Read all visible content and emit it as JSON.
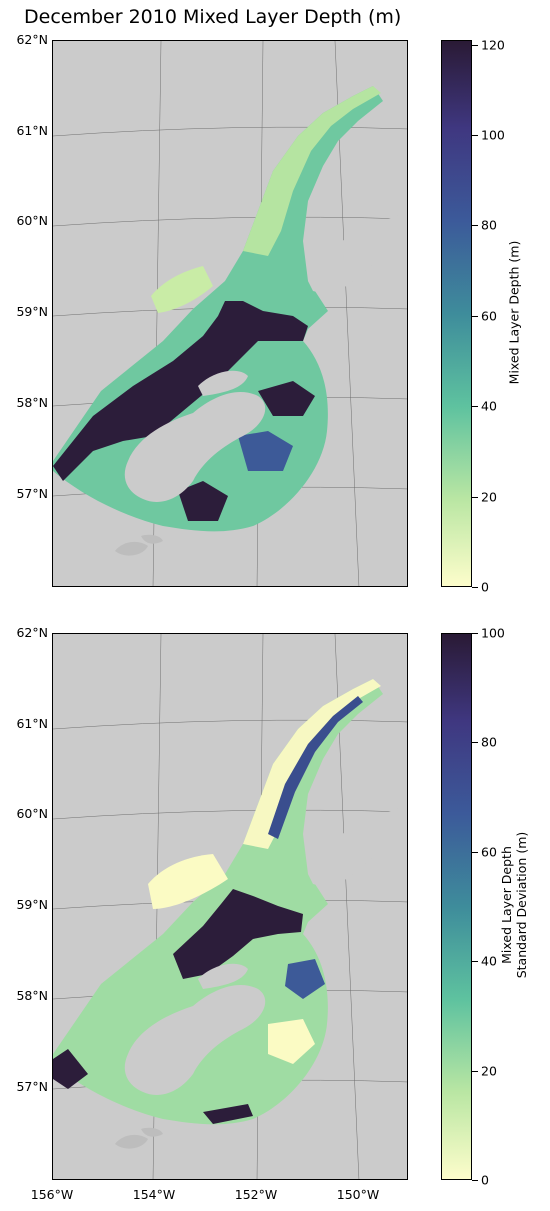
{
  "title": "December 2010 Mixed Layer Depth (m)",
  "lat_labels": [
    "62°N",
    "61°N",
    "60°N",
    "59°N",
    "58°N",
    "57°N"
  ],
  "lon_labels": [
    "156°W",
    "154°W",
    "152°W",
    "150°W"
  ],
  "colors": {
    "land": "#cbcbcb",
    "colormap": [
      "#fdfdcb",
      "#b9e6a3",
      "#5ec29f",
      "#3e8c9b",
      "#3c5a9a",
      "#3f3780",
      "#2a1a35"
    ]
  },
  "panels": [
    {
      "colorbar_label_line1": "Mixed Layer Depth (m)",
      "colorbar_label_line2": "",
      "colorbar_ticks": [
        "0",
        "20",
        "40",
        "60",
        "80",
        "100",
        "120"
      ],
      "colorbar_max": 121
    },
    {
      "colorbar_label_line1": "Mixed Layer Depth",
      "colorbar_label_line2": "Standard Deviation (m)",
      "colorbar_ticks": [
        "0",
        "20",
        "40",
        "60",
        "80",
        "100"
      ],
      "colorbar_max": 100
    }
  ]
}
